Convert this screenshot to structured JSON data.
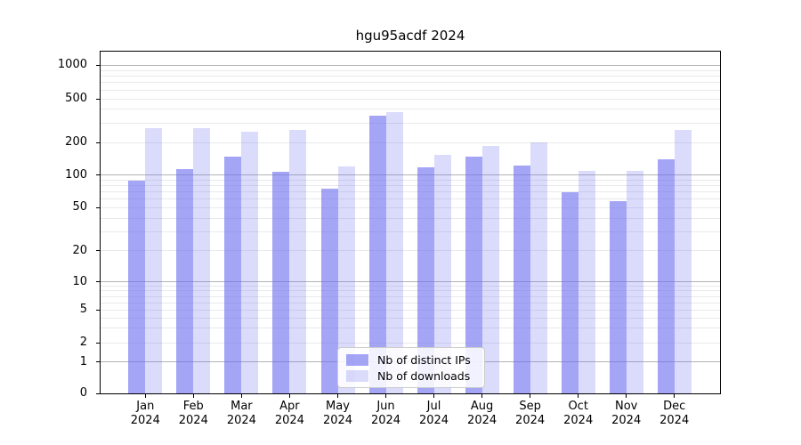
{
  "chart_data": {
    "type": "bar",
    "title": "hgu95acdf 2024",
    "categories": [
      "Jan",
      "Feb",
      "Mar",
      "Apr",
      "May",
      "Jun",
      "Jul",
      "Aug",
      "Sep",
      "Oct",
      "Nov",
      "Dec"
    ],
    "year": "2024",
    "series": [
      {
        "name": "Nb of distinct IPs",
        "color": "rgba(110,110,240,0.62)",
        "values": [
          88,
          113,
          147,
          108,
          75,
          350,
          118,
          148,
          122,
          69,
          58,
          140
        ]
      },
      {
        "name": "Nb of downloads",
        "color": "rgba(110,110,240,0.25)",
        "values": [
          270,
          270,
          250,
          260,
          120,
          380,
          155,
          185,
          200,
          110,
          110,
          258
        ]
      }
    ],
    "yscale": "symlog",
    "yticks": [
      0,
      1,
      2,
      5,
      10,
      20,
      50,
      100,
      200,
      500,
      1000
    ],
    "ylim": [
      0,
      1300
    ],
    "grid": true,
    "legend_position": "lower center"
  },
  "colors": {
    "grid_major": "#b3b3b3",
    "grid_minor": "#e9e9e9",
    "spine": "#000000",
    "legend_border": "#cccccc"
  }
}
